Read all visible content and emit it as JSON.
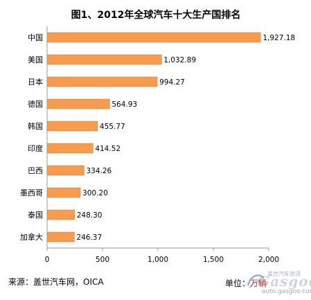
{
  "chart_data": {
    "type": "bar",
    "orientation": "horizontal",
    "title": "图1、2012年全球汽车十大生产国排名",
    "categories": [
      "中国",
      "美国",
      "日本",
      "德国",
      "韩国",
      "印度",
      "巴西",
      "墨西哥",
      "泰国",
      "加拿大"
    ],
    "values": [
      1927.18,
      1032.89,
      994.27,
      564.93,
      455.77,
      414.52,
      334.26,
      300.2,
      248.3,
      246.37
    ],
    "value_labels": [
      "1,927.18",
      "1,032.89",
      "994.27",
      "564.93",
      "455.77",
      "414.52",
      "334.26",
      "300.20",
      "248.30",
      "246.37"
    ],
    "xlim": [
      0,
      2000
    ],
    "xticks": [
      0,
      500,
      1000,
      1500,
      2000
    ],
    "xtick_labels": [
      "0",
      "500",
      "1,000",
      "1,500",
      "2,000"
    ],
    "grid": false,
    "legend": "none",
    "bar_color": "#f79b4f",
    "bar_edge_color": "#d9772e"
  },
  "footer": {
    "source": "来源：盖世汽车网，OICA",
    "unit_label": "单位：",
    "unit_value": "万辆"
  },
  "watermark": {
    "word": "Gasgoo",
    "cn": "盖世汽车资讯",
    "url": "auto.gasgoo.com",
    "icon": "gasgoo-logo-icon"
  }
}
